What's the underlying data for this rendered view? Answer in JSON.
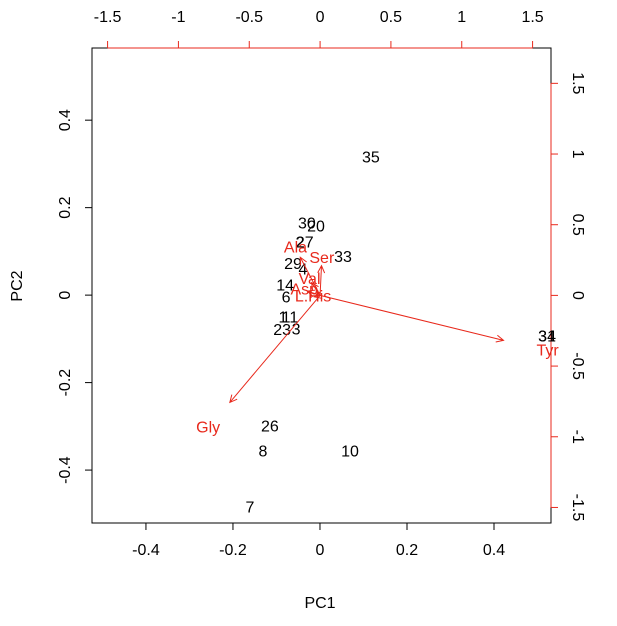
{
  "chart_data": {
    "type": "biplot",
    "xlabel": "PC1",
    "ylabel": "PC2",
    "xlim": [
      -0.524,
      0.531
    ],
    "ylim": [
      -0.521,
      0.565
    ],
    "xticks": [
      -0.4,
      -0.2,
      0.0,
      0.2,
      0.4
    ],
    "yticks": [
      -0.4,
      -0.2,
      0.0,
      0.2,
      0.4
    ],
    "x2lim": [
      -1.61,
      1.63
    ],
    "y2lim": [
      -1.61,
      1.75
    ],
    "x2ticks": [
      -1.5,
      -1.0,
      -0.5,
      0.0,
      0.5,
      1.0,
      1.5
    ],
    "y2ticks": [
      -1.5,
      -1.0,
      -0.5,
      0.0,
      0.5,
      1.0,
      1.5
    ],
    "point_color": "#000000",
    "arrow_color": "#e8291c",
    "observations": {
      "labels": [
        "35",
        "33",
        "26",
        "8",
        "10",
        "7",
        "31",
        "34",
        "30",
        "20",
        "27",
        "2",
        "29",
        "4",
        "11",
        "1",
        "23",
        "3",
        "6",
        "14"
      ],
      "x": [
        0.117,
        0.053,
        -0.115,
        -0.131,
        0.069,
        -0.161,
        0.522,
        0.522,
        -0.03,
        -0.009,
        -0.035,
        -0.046,
        -0.062,
        -0.039,
        -0.069,
        -0.085,
        -0.087,
        -0.055,
        -0.078,
        -0.08
      ],
      "y": [
        0.313,
        0.085,
        -0.302,
        -0.359,
        -0.359,
        -0.487,
        -0.096,
        -0.096,
        0.162,
        0.155,
        0.118,
        0.118,
        0.069,
        0.057,
        -0.053,
        -0.053,
        -0.082,
        -0.08,
        -0.007,
        0.02
      ]
    },
    "variables": {
      "names": [
        "Gly",
        "Tyr",
        "Ser",
        "Ala",
        "Val",
        "Asp",
        "L.His"
      ],
      "x": [
        -0.637,
        1.295,
        0.01,
        -0.14,
        -0.06,
        -0.09,
        -0.04
      ],
      "y": [
        -0.757,
        -0.318,
        0.21,
        0.27,
        0.09,
        0.03,
        -0.01
      ]
    }
  }
}
